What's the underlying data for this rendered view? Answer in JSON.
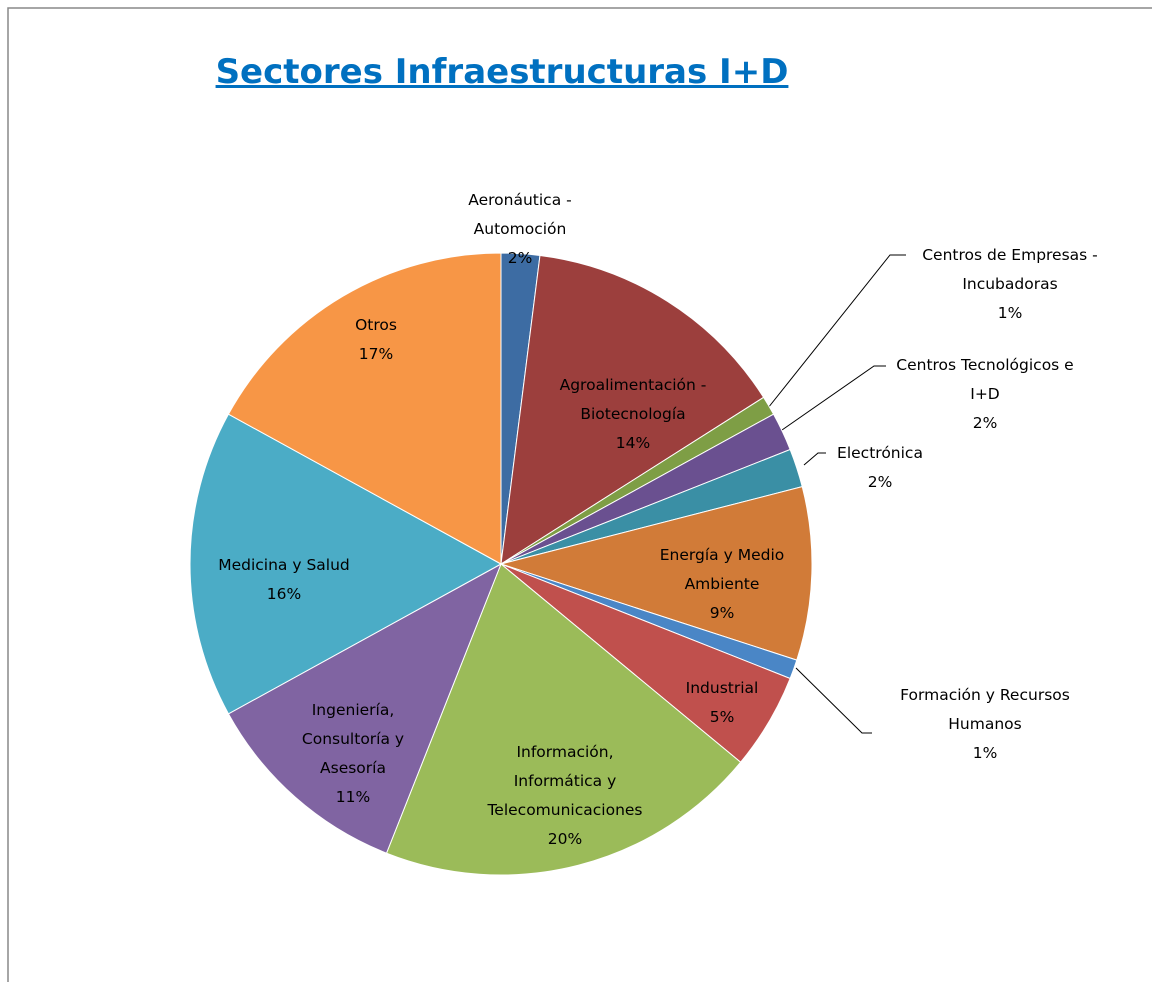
{
  "chart_data": {
    "type": "pie",
    "title": "Sectores Infraestructuras I+D",
    "categories": [
      "Aeronáutica - Automoción",
      "Agroalimentación - Biotecnología",
      "Centros de Empresas - Incubadoras",
      "Centros Tecnológicos e I+D",
      "Electrónica",
      "Energía y Medio Ambiente",
      "Formación y Recursos Humanos",
      "Industrial",
      "Información, Informática y Telecomunicaciones",
      "Ingeniería, Consultoría y Asesoría",
      "Medicina y Salud",
      "Otros"
    ],
    "values": [
      2,
      14,
      1,
      2,
      2,
      9,
      1,
      5,
      20,
      11,
      16,
      17
    ],
    "value_labels": [
      "2%",
      "14%",
      "1%",
      "2%",
      "2%",
      "9%",
      "1%",
      "5%",
      "20%",
      "11%",
      "16%",
      "17%"
    ],
    "colors": [
      "#3d6ca3",
      "#9c3f3d",
      "#7e9e45",
      "#6a5090",
      "#3a8fa5",
      "#d17b38",
      "#4a86c6",
      "#c0504d",
      "#9bbb59",
      "#8064a2",
      "#4bacc6",
      "#f79646"
    ]
  }
}
